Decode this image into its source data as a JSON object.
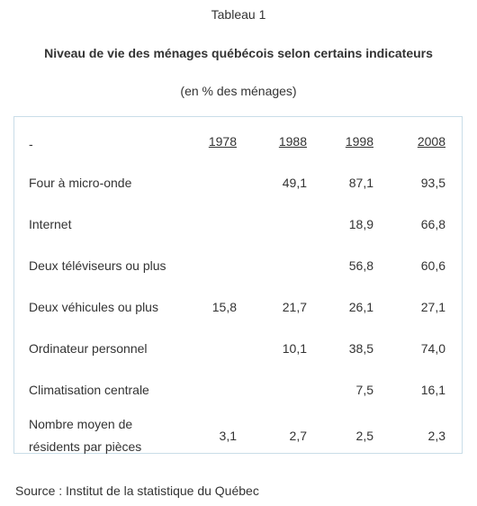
{
  "caption": {
    "label": "Tableau 1",
    "title": "Niveau de vie des ménages québécois selon certains indicateurs",
    "unit": "(en % des ménages)"
  },
  "table": {
    "corner": "-",
    "years": [
      "1978",
      "1988",
      "1998",
      "2008"
    ],
    "rows": [
      {
        "label": "Four à micro-onde",
        "values": [
          "",
          "49,1",
          "87,1",
          "93,5"
        ]
      },
      {
        "label": "Internet",
        "values": [
          "",
          "",
          "18,9",
          "66,8"
        ]
      },
      {
        "label": "Deux téléviseurs ou plus",
        "values": [
          "",
          "",
          "56,8",
          "60,6"
        ]
      },
      {
        "label": "Deux véhicules ou plus",
        "values": [
          "15,8",
          "21,7",
          "26,1",
          "27,1"
        ]
      },
      {
        "label": "Ordinateur personnel",
        "values": [
          "",
          "10,1",
          "38,5",
          "74,0"
        ]
      },
      {
        "label": "Climatisation centrale",
        "values": [
          "",
          "",
          "7,5",
          "16,1"
        ]
      },
      {
        "label": "Nombre moyen de\nrésidents par pièces",
        "label_lines": [
          "Nombre moyen de",
          "résidents par pièces"
        ],
        "values": [
          "3,1",
          "2,7",
          "2,5",
          "2,3"
        ]
      }
    ]
  },
  "source": "Source : Institut de la statistique du Québec"
}
